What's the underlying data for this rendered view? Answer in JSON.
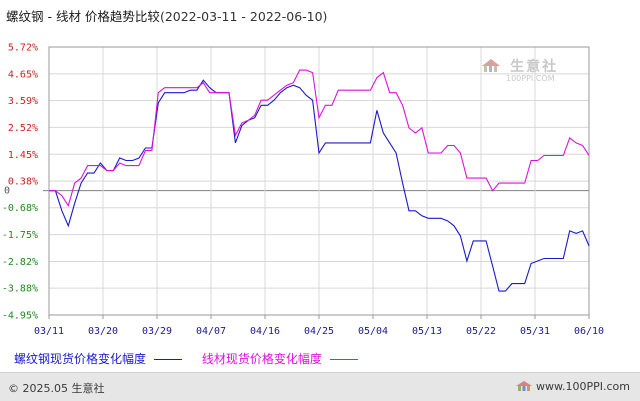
{
  "header": {
    "title_main": "螺纹钢 - 线材 价格趋势比较",
    "title_range": "(2022-03-11 - 2022-06-10)"
  },
  "watermark": {
    "name": "生意社",
    "url": "100PPI.COM"
  },
  "footer": {
    "copyright": "© 2025.05 生意社",
    "brand_url": "www.100PPI.com"
  },
  "colors": {
    "series1": "#1a1acc",
    "series2": "#dd11dd",
    "positive_label": "#cc2222",
    "negative_label": "#228822",
    "zero_line": "#808080",
    "grid": "#d8d8d8"
  },
  "chart_data": {
    "type": "line",
    "x_ticks": [
      "03/11",
      "03/20",
      "03/29",
      "04/07",
      "04/16",
      "04/25",
      "05/04",
      "05/13",
      "05/22",
      "05/31",
      "06/10"
    ],
    "y_ticks": [
      "5.72%",
      "4.65%",
      "3.59%",
      "2.52%",
      "1.45%",
      "0.38%",
      "0",
      "-0.68%",
      "-1.75%",
      "-2.82%",
      "-3.88%",
      "-4.95%"
    ],
    "ylim": [
      -4.95,
      5.72
    ],
    "y_unit": "%",
    "grid": true,
    "legend_position": "bottom",
    "series": [
      {
        "name": "螺纹钢现货价格变化幅度",
        "values": [
          0.0,
          0.0,
          -0.8,
          -1.4,
          -0.5,
          0.3,
          0.7,
          0.7,
          1.1,
          0.8,
          0.8,
          1.3,
          1.2,
          1.2,
          1.3,
          1.7,
          1.7,
          3.5,
          3.9,
          3.9,
          3.9,
          3.9,
          4.0,
          4.0,
          4.4,
          4.1,
          3.9,
          3.9,
          3.9,
          1.9,
          2.6,
          2.8,
          2.9,
          3.4,
          3.4,
          3.6,
          3.9,
          4.1,
          4.2,
          4.1,
          3.8,
          3.6,
          1.5,
          1.9,
          1.9,
          1.9,
          1.9,
          1.9,
          1.9,
          1.9,
          1.9,
          3.2,
          2.3,
          1.9,
          1.5,
          0.3,
          -0.8,
          -0.8,
          -1.0,
          -1.1,
          -1.1,
          -1.1,
          -1.2,
          -1.4,
          -1.8,
          -2.8,
          -2.0,
          -2.0,
          -2.0,
          -3.0,
          -4.0,
          -4.0,
          -3.7,
          -3.7,
          -3.7,
          -2.9,
          -2.8,
          -2.7,
          -2.7,
          -2.7,
          -2.7,
          -1.6,
          -1.7,
          -1.6,
          -2.2
        ],
        "color": "#1a1acc"
      },
      {
        "name": "线材现货价格变化幅度",
        "values": [
          0.0,
          0.0,
          -0.2,
          -0.6,
          0.3,
          0.5,
          1.0,
          1.0,
          1.0,
          0.8,
          0.8,
          1.1,
          1.0,
          1.0,
          1.0,
          1.6,
          1.6,
          3.9,
          4.1,
          4.1,
          4.1,
          4.1,
          4.1,
          4.1,
          4.3,
          3.9,
          3.9,
          3.9,
          3.9,
          2.2,
          2.7,
          2.8,
          3.0,
          3.6,
          3.6,
          3.8,
          4.0,
          4.2,
          4.3,
          4.8,
          4.8,
          4.7,
          2.9,
          3.4,
          3.4,
          4.0,
          4.0,
          4.0,
          4.0,
          4.0,
          4.0,
          4.5,
          4.7,
          3.9,
          3.9,
          3.4,
          2.5,
          2.3,
          2.5,
          1.5,
          1.5,
          1.5,
          1.8,
          1.8,
          1.5,
          0.5,
          0.5,
          0.5,
          0.5,
          0.0,
          0.3,
          0.3,
          0.3,
          0.3,
          0.3,
          1.2,
          1.2,
          1.4,
          1.4,
          1.4,
          1.4,
          2.1,
          1.9,
          1.8,
          1.4
        ],
        "color": "#dd11dd"
      }
    ]
  }
}
